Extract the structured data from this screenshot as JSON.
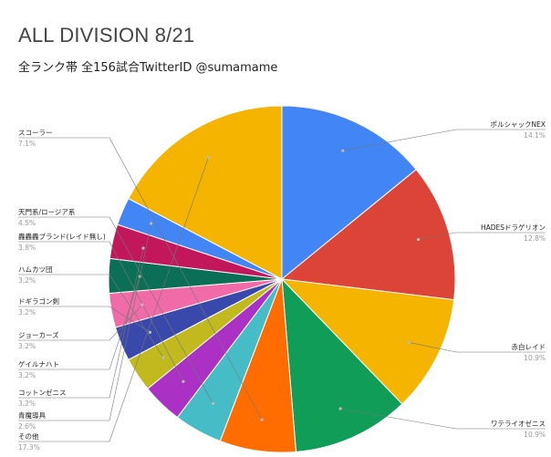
{
  "chart_data": {
    "type": "pie",
    "title": "ALL DIVISION 8/21",
    "subtitle": "全ランク帯 全156試合TwitterID @sumamame",
    "slices": [
      {
        "name": "ポルシャックNEX",
        "value": 14.1,
        "pct_label": "14.1%",
        "color": "#4285f4"
      },
      {
        "name": "HADESドラゲリオン",
        "value": 12.8,
        "pct_label": "12.8%",
        "color": "#db4437"
      },
      {
        "name": "赤白レイド",
        "value": 10.9,
        "pct_label": "10.9%",
        "color": "#f4b400"
      },
      {
        "name": "ワテライオゼニス",
        "value": 10.9,
        "pct_label": "10.9%",
        "color": "#0f9d58"
      },
      {
        "name": "スコーラー",
        "value": 7.1,
        "pct_label": "7.1%",
        "color": "#ff6d01"
      },
      {
        "name": "天門系/ロージア系",
        "value": 4.5,
        "pct_label": "4.5%",
        "color": "#46bdc6"
      },
      {
        "name": "轟轟轟ブランド(レイド無し)",
        "value": 3.8,
        "pct_label": "3.8%",
        "color": "#ab30c4"
      },
      {
        "name": "ハムカツ団",
        "value": 3.2,
        "pct_label": "3.2%",
        "color": "#c2b91f"
      },
      {
        "name": "ドギラゴン剣",
        "value": 3.2,
        "pct_label": "3.2%",
        "color": "#3949ab"
      },
      {
        "name": "ジョーカーズ",
        "value": 3.2,
        "pct_label": "3.2%",
        "color": "#f06ba8"
      },
      {
        "name": "ゲイルナハト",
        "value": 3.2,
        "pct_label": "3.2%",
        "color": "#0b6f55"
      },
      {
        "name": "コットンゼニス",
        "value": 3.2,
        "pct_label": "3.2%",
        "color": "#c2185b"
      },
      {
        "name": "青魔導具",
        "value": 2.6,
        "pct_label": "2.6%",
        "color": "#4285f4"
      },
      {
        "name": "その他",
        "value": 17.3,
        "pct_label": "17.3%",
        "color": "#f4b400"
      }
    ],
    "legend": "labels-around-pie"
  }
}
